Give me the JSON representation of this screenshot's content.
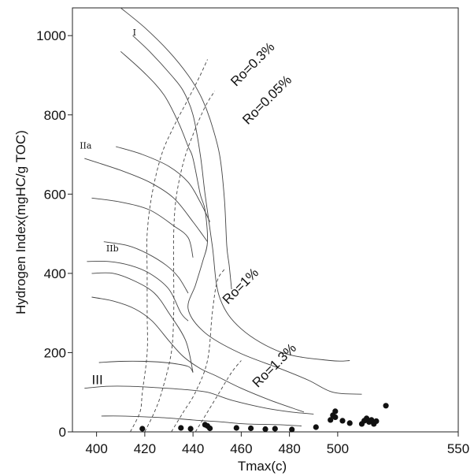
{
  "chart_data": {
    "type": "scatter",
    "title": "",
    "xlabel": "Tmax(c)",
    "ylabel": "Hydrogen Index(mgHC/g TOC)",
    "xlim": [
      390,
      550
    ],
    "ylim": [
      0,
      1070
    ],
    "x_ticks": [
      "400",
      "420",
      "440",
      "460",
      "480",
      "500",
      "550"
    ],
    "y_ticks": [
      "0",
      "200",
      "400",
      "600",
      "800",
      "1000"
    ],
    "grid": false,
    "kerogen_type_labels": [
      {
        "text": "I",
        "x": 415,
        "y": 1000
      },
      {
        "text": "IIa",
        "x": 393,
        "y": 715
      },
      {
        "text": "IIb",
        "x": 404,
        "y": 455
      },
      {
        "text": "III",
        "x": 398,
        "y": 120
      }
    ],
    "maturity_labels": [
      {
        "text": "Ro=0.3%",
        "x": 466,
        "y": 920
      },
      {
        "text": "Ro=0.05%",
        "x": 472,
        "y": 830
      },
      {
        "text": "Ro=1%",
        "x": 461,
        "y": 360
      },
      {
        "text": "Ro=1.3%",
        "x": 475,
        "y": 160
      }
    ],
    "series": [
      {
        "values": [
          [
            419,
            8
          ],
          [
            435,
            10
          ],
          [
            439,
            8
          ],
          [
            445,
            18
          ],
          [
            446,
            15
          ],
          [
            447,
            9
          ],
          [
            458,
            10
          ],
          [
            464,
            9
          ],
          [
            470,
            7
          ],
          [
            474,
            8
          ],
          [
            481,
            6
          ],
          [
            491,
            12
          ],
          [
            497,
            30
          ],
          [
            498,
            42
          ],
          [
            499,
            52
          ],
          [
            499,
            37
          ],
          [
            502,
            28
          ],
          [
            505,
            22
          ],
          [
            510,
            20
          ],
          [
            511,
            28
          ],
          [
            512,
            34
          ],
          [
            513,
            25
          ],
          [
            514,
            30
          ],
          [
            515,
            20
          ],
          [
            516,
            27
          ],
          [
            520,
            66
          ]
        ]
      }
    ],
    "kerogen_curves": [
      [
        [
          410,
          1070
        ],
        [
          420,
          1020
        ],
        [
          430,
          960
        ],
        [
          438,
          900
        ],
        [
          443,
          850
        ],
        [
          447,
          790
        ],
        [
          451,
          700
        ],
        [
          453,
          590
        ],
        [
          454,
          470
        ],
        [
          455,
          420
        ],
        [
          456,
          360
        ]
      ],
      [
        [
          415,
          1000
        ],
        [
          422,
          960
        ],
        [
          431,
          900
        ],
        [
          436,
          860
        ],
        [
          440,
          800
        ],
        [
          443,
          700
        ],
        [
          445,
          600
        ],
        [
          448,
          470
        ],
        [
          451,
          340
        ],
        [
          460,
          260
        ],
        [
          477,
          200
        ],
        [
          497,
          180
        ],
        [
          505,
          180
        ]
      ],
      [
        [
          410,
          960
        ],
        [
          420,
          905
        ],
        [
          428,
          850
        ],
        [
          434,
          780
        ],
        [
          438,
          720
        ],
        [
          440,
          690
        ],
        [
          443,
          600
        ],
        [
          445,
          560
        ],
        [
          446,
          480
        ],
        [
          444,
          430
        ],
        [
          441,
          370
        ],
        [
          438,
          310
        ],
        [
          445,
          250
        ],
        [
          459,
          200
        ],
        [
          476,
          160
        ],
        [
          488,
          130
        ],
        [
          498,
          100
        ],
        [
          510,
          95
        ]
      ],
      [
        [
          408,
          720
        ],
        [
          419,
          700
        ],
        [
          430,
          670
        ],
        [
          438,
          630
        ],
        [
          443,
          580
        ],
        [
          447,
          530
        ]
      ],
      [
        [
          395,
          690
        ],
        [
          410,
          660
        ],
        [
          422,
          630
        ],
        [
          432,
          590
        ],
        [
          440,
          530
        ],
        [
          446,
          480
        ]
      ],
      [
        [
          398,
          590
        ],
        [
          410,
          580
        ],
        [
          422,
          560
        ],
        [
          432,
          520
        ],
        [
          438,
          490
        ],
        [
          440,
          440
        ]
      ],
      [
        [
          403,
          480
        ],
        [
          413,
          470
        ],
        [
          421,
          450
        ],
        [
          429,
          420
        ],
        [
          434,
          390
        ],
        [
          438,
          350
        ]
      ],
      [
        [
          396,
          430
        ],
        [
          405,
          430
        ],
        [
          414,
          420
        ],
        [
          422,
          400
        ],
        [
          430,
          360
        ],
        [
          435,
          300
        ],
        [
          438,
          280
        ]
      ],
      [
        [
          398,
          400
        ],
        [
          407,
          400
        ],
        [
          416,
          380
        ],
        [
          424,
          350
        ],
        [
          430,
          300
        ],
        [
          437,
          230
        ],
        [
          440,
          150
        ]
      ],
      [
        [
          398,
          340
        ],
        [
          407,
          330
        ],
        [
          416,
          310
        ],
        [
          423,
          280
        ],
        [
          430,
          230
        ],
        [
          436,
          190
        ],
        [
          443,
          160
        ],
        [
          450,
          140
        ],
        [
          460,
          110
        ],
        [
          472,
          80
        ],
        [
          486,
          50
        ]
      ],
      [
        [
          401,
          175
        ],
        [
          410,
          178
        ],
        [
          420,
          178
        ],
        [
          430,
          174
        ],
        [
          438,
          165
        ],
        [
          440,
          150
        ]
      ],
      [
        [
          395,
          110
        ],
        [
          404,
          115
        ],
        [
          414,
          115
        ],
        [
          424,
          112
        ],
        [
          436,
          107
        ],
        [
          446,
          100
        ],
        [
          456,
          80
        ],
        [
          470,
          60
        ],
        [
          481,
          50
        ],
        [
          490,
          45
        ]
      ],
      [
        [
          402,
          40
        ],
        [
          410,
          40
        ],
        [
          420,
          38
        ],
        [
          430,
          35
        ],
        [
          440,
          30
        ],
        [
          452,
          25
        ],
        [
          462,
          20
        ],
        [
          476,
          18
        ],
        [
          485,
          15
        ]
      ]
    ],
    "iso_ro_curves": [
      [
        [
          414,
          0
        ],
        [
          418,
          50
        ],
        [
          419,
          100
        ],
        [
          421,
          200
        ],
        [
          421,
          300
        ],
        [
          421,
          400
        ],
        [
          421,
          500
        ],
        [
          423,
          600
        ],
        [
          427,
          700
        ],
        [
          432,
          770
        ],
        [
          438,
          840
        ],
        [
          443,
          900
        ],
        [
          446,
          940
        ]
      ],
      [
        [
          420,
          0
        ],
        [
          424,
          50
        ],
        [
          427,
          100
        ],
        [
          431,
          200
        ],
        [
          432,
          300
        ],
        [
          432,
          400
        ],
        [
          432,
          500
        ],
        [
          433,
          590
        ],
        [
          436,
          680
        ],
        [
          440,
          750
        ],
        [
          445,
          820
        ],
        [
          449,
          860
        ]
      ],
      [
        [
          431,
          0
        ],
        [
          436,
          50
        ],
        [
          441,
          100
        ],
        [
          446,
          180
        ],
        [
          448,
          300
        ],
        [
          450,
          380
        ],
        [
          453,
          410
        ]
      ],
      [
        [
          441,
          0
        ],
        [
          446,
          50
        ],
        [
          451,
          100
        ],
        [
          456,
          150
        ],
        [
          460,
          180
        ]
      ]
    ]
  }
}
